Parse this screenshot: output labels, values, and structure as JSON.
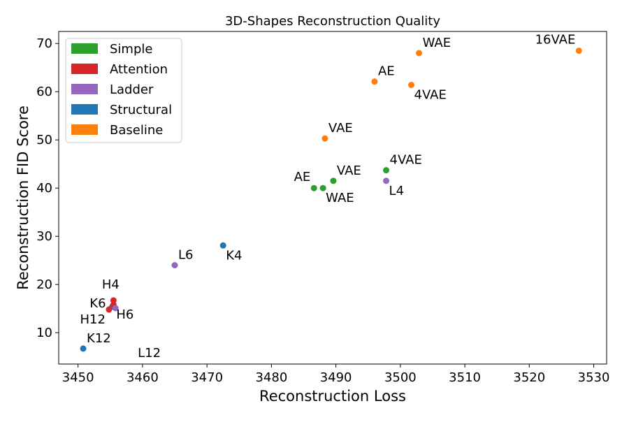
{
  "chart_data": {
    "type": "scatter",
    "title": "3D-Shapes Reconstruction Quality",
    "xlabel": "Reconstruction Loss",
    "ylabel": "Reconstruction FID Score",
    "xlim": [
      3447,
      3532
    ],
    "ylim": [
      3.5,
      72.5
    ],
    "xticks": [
      3450,
      3460,
      3470,
      3480,
      3490,
      3500,
      3510,
      3520,
      3530
    ],
    "yticks": [
      10,
      20,
      30,
      40,
      50,
      60,
      70
    ],
    "grid": false,
    "legend_position": "top-left",
    "groups": [
      {
        "name": "Simple",
        "color": "#2ca02c"
      },
      {
        "name": "Attention",
        "color": "#d62728"
      },
      {
        "name": "Ladder",
        "color": "#9467bd"
      },
      {
        "name": "Structural",
        "color": "#1f77b4"
      },
      {
        "name": "Baseline",
        "color": "#ff7f0e"
      }
    ],
    "points": [
      {
        "label": "16VAE",
        "group": "Baseline",
        "x": 3527.7,
        "y": 68.5,
        "anchor": "upper-left"
      },
      {
        "label": "WAE",
        "group": "Baseline",
        "x": 3502.9,
        "y": 68.0,
        "anchor": "upper-right"
      },
      {
        "label": "AE",
        "group": "Baseline",
        "x": 3496.0,
        "y": 62.1,
        "anchor": "upper-right"
      },
      {
        "label": "4VAE",
        "group": "Baseline",
        "x": 3501.7,
        "y": 61.4,
        "anchor": "lower-right"
      },
      {
        "label": "VAE",
        "group": "Baseline",
        "x": 3488.3,
        "y": 50.3,
        "anchor": "upper-right"
      },
      {
        "label": "4VAE",
        "group": "Simple",
        "x": 3497.8,
        "y": 43.7,
        "anchor": "upper-right"
      },
      {
        "label": "VAE",
        "group": "Simple",
        "x": 3489.6,
        "y": 41.5,
        "anchor": "upper-right"
      },
      {
        "label": "AE",
        "group": "Simple",
        "x": 3486.6,
        "y": 40.0,
        "anchor": "upper-left"
      },
      {
        "label": "WAE",
        "group": "Simple",
        "x": 3488.0,
        "y": 40.0,
        "anchor": "lower-right"
      },
      {
        "label": "L4",
        "group": "Ladder",
        "x": 3497.8,
        "y": 41.5,
        "anchor": "lower-right"
      },
      {
        "label": "K4",
        "group": "Structural",
        "x": 3472.5,
        "y": 28.1,
        "anchor": "lower-right"
      },
      {
        "label": "L6",
        "group": "Ladder",
        "x": 3465.0,
        "y": 24.0,
        "anchor": "upper-right"
      },
      {
        "label": "H4",
        "group": "Attention",
        "x": 3455.5,
        "y": 16.7,
        "anchor": "upper-near"
      },
      {
        "label": "K6",
        "group": "Structural",
        "x": 3455.3,
        "y": 15.4,
        "anchor": "upper-left-far"
      },
      {
        "label": "H6",
        "group": "Attention",
        "x": 3455.5,
        "y": 15.8,
        "anchor": "lower-right"
      },
      {
        "label": "L12",
        "group": "Ladder",
        "x": 3455.8,
        "y": 15.1,
        "anchor": "lower-right-far"
      },
      {
        "label": "H12",
        "group": "Attention",
        "x": 3454.8,
        "y": 14.8,
        "anchor": "lower-left"
      },
      {
        "label": "K12",
        "group": "Structural",
        "x": 3450.8,
        "y": 6.7,
        "anchor": "upper-right"
      }
    ]
  }
}
